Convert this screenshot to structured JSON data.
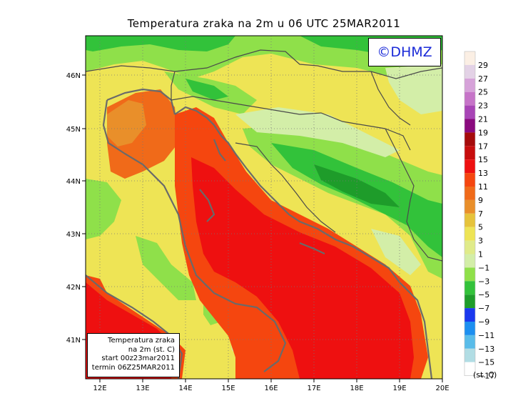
{
  "title": "Temperatura zraka na 2m u 06 UTC 25MAR2011",
  "logo_text": "©DHMZ",
  "info_box": {
    "line1": "Temperatura zraka",
    "line2": "na 2m (st. C)",
    "line3": "start 00z23mar2011",
    "line4": "termin 06Z25MAR2011"
  },
  "lon_ticks": [
    "12E",
    "13E",
    "14E",
    "15E",
    "16E",
    "17E",
    "18E",
    "19E",
    "20E"
  ],
  "lat_ticks": [
    "46N",
    "45N",
    "44N",
    "43N",
    "42N",
    "41N"
  ],
  "legend": {
    "unit": "(st. C)",
    "labels": [
      "29",
      "27",
      "25",
      "23",
      "21",
      "19",
      "17",
      "15",
      "13",
      "11",
      "9",
      "7",
      "5",
      "3",
      "1",
      "−1",
      "−3",
      "−5",
      "−7",
      "−9",
      "−11",
      "−13",
      "−15",
      "−17"
    ],
    "colors": [
      "#fbefe4",
      "#e3d2e6",
      "#d6a2d9",
      "#c674c8",
      "#a845b6",
      "#8a0a7e",
      "#a50b0b",
      "#c70d0d",
      "#ee1010",
      "#f5460f",
      "#f06a19",
      "#e98f2a",
      "#e6c33b",
      "#eee455",
      "#e0eb8a",
      "#d3eea8",
      "#8fe04a",
      "#32c23a",
      "#1e9c2a",
      "#1a38ee",
      "#1c8ff0",
      "#59bce9",
      "#b1dde4",
      "#ffffff"
    ]
  }
}
